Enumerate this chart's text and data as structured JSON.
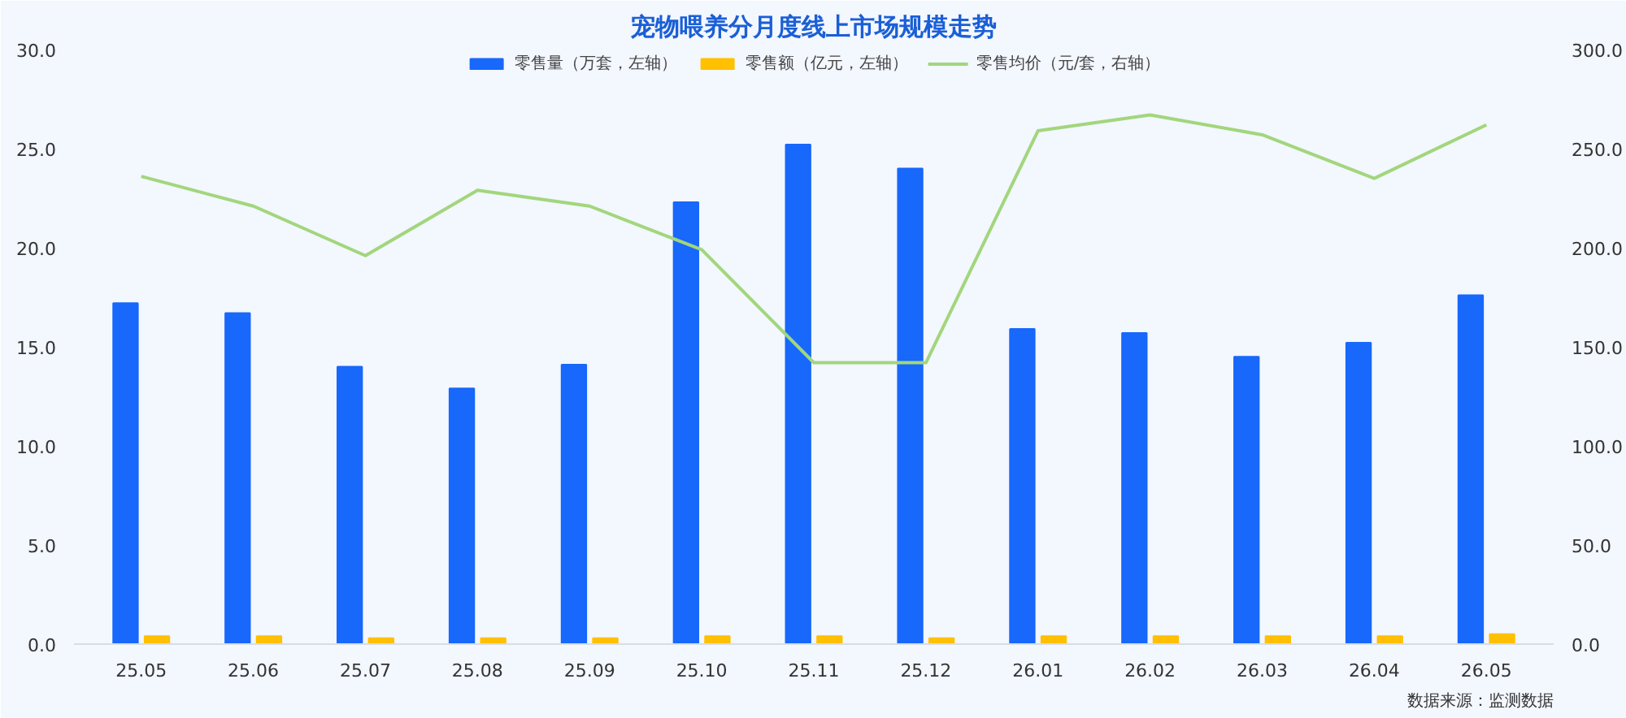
{
  "chart_data": {
    "type": "bar",
    "title": "宠物喂养分月度线上市场规模走势",
    "categories": [
      "25.05",
      "25.06",
      "25.07",
      "25.08",
      "25.09",
      "25.10",
      "25.11",
      "25.12",
      "26.01",
      "26.02",
      "26.03",
      "26.04",
      "26.05"
    ],
    "series": [
      {
        "name": "零售量（万套，左轴）",
        "color": "#1768fb",
        "values": [
          17.2,
          16.7,
          14.0,
          12.9,
          14.1,
          22.3,
          25.2,
          24.0,
          15.9,
          15.7,
          14.5,
          15.2,
          17.6
        ]
      },
      {
        "name": "零售额（亿元，左轴）",
        "color": "#ffc000",
        "values": [
          0.4,
          0.4,
          0.3,
          0.3,
          0.3,
          0.4,
          0.4,
          0.3,
          0.4,
          0.4,
          0.4,
          0.4,
          0.5
        ]
      },
      {
        "name": "零售均价（元/套，右轴）",
        "color": "#a2d67c",
        "type": "line",
        "axis": "y2",
        "values": [
          236,
          221,
          196,
          229,
          221,
          199,
          142,
          142,
          259,
          267,
          257,
          235,
          262
        ]
      }
    ],
    "ylim": [
      0,
      30
    ],
    "yticks": [
      {
        "value": 0,
        "label": "0.0"
      },
      {
        "value": 5,
        "label": "5.0"
      },
      {
        "value": 10,
        "label": "10.0"
      },
      {
        "value": 15,
        "label": "15.0"
      },
      {
        "value": 20,
        "label": "20.0"
      },
      {
        "value": 25,
        "label": "25.0"
      },
      {
        "value": 30,
        "label": "30.0"
      }
    ],
    "y2lim": [
      0,
      300
    ],
    "y2ticks": [
      {
        "value": 0,
        "label": "0.0"
      },
      {
        "value": 50,
        "label": "50.0"
      },
      {
        "value": 100,
        "label": "100.0"
      },
      {
        "value": 150,
        "label": "150.0"
      },
      {
        "value": 200,
        "label": "200.0"
      },
      {
        "value": 250,
        "label": "250.0"
      },
      {
        "value": 300,
        "label": "300.0"
      }
    ],
    "legend": "top",
    "grid": false,
    "marker": "none",
    "line_style": "solid",
    "annotations": [
      "数据来源：监测数据"
    ]
  }
}
